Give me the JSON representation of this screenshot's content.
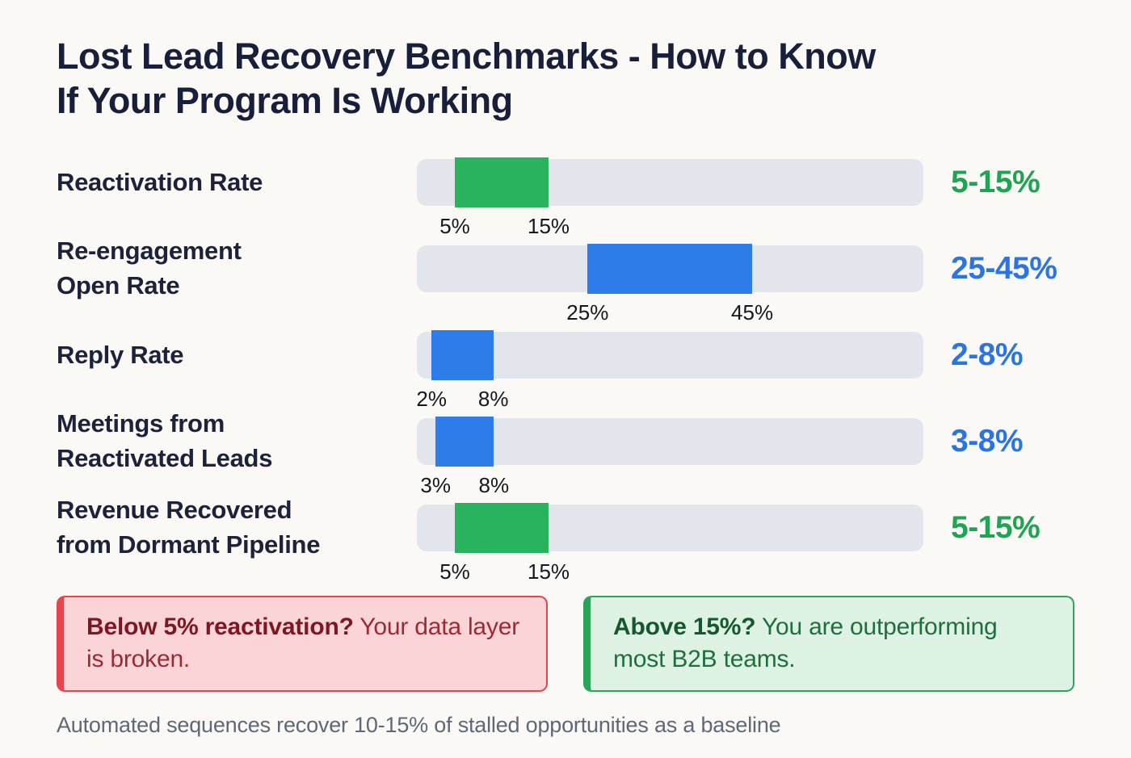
{
  "title": "Lost Lead Recovery Benchmarks - How to Know\nIf Your Program Is Working",
  "chart_data": {
    "type": "bar",
    "subtype": "horizontal-range-bars",
    "title": "Lost Lead Recovery Benchmarks - How to Know If Your Program Is Working",
    "legend_position": "none",
    "grid": false,
    "colors": {
      "green": "#29b35e",
      "blue": "#2e7ce9",
      "green_text": "#1ea452",
      "blue_text": "#2b74e4",
      "track": "#e2e5eb"
    },
    "rows": [
      {
        "label": "Reactivation Rate",
        "min": 5,
        "max": 15,
        "unit": "%",
        "min_label": "5%",
        "max_label": "15%",
        "range_label": "5-15%",
        "color": "green",
        "start_pct": 7.5,
        "end_pct": 26.0
      },
      {
        "label": "Re-engagement\nOpen Rate",
        "min": 25,
        "max": 45,
        "unit": "%",
        "min_label": "25%",
        "max_label": "45%",
        "range_label": "25-45%",
        "color": "blue",
        "start_pct": 33.7,
        "end_pct": 66.2
      },
      {
        "label": "Reply Rate",
        "min": 2,
        "max": 8,
        "unit": "%",
        "min_label": "2%",
        "max_label": "8%",
        "range_label": "2-8%",
        "color": "blue",
        "start_pct": 2.9,
        "end_pct": 15.1
      },
      {
        "label": "Meetings from\nReactivated Leads",
        "min": 3,
        "max": 8,
        "unit": "%",
        "min_label": "3%",
        "max_label": "8%",
        "range_label": "3-8%",
        "color": "blue",
        "start_pct": 3.7,
        "end_pct": 15.2
      },
      {
        "label": "Revenue Recovered\nfrom Dormant Pipeline",
        "min": 5,
        "max": 15,
        "unit": "%",
        "min_label": "5%",
        "max_label": "15%",
        "range_label": "5-15%",
        "color": "green",
        "start_pct": 7.5,
        "end_pct": 26.0
      }
    ]
  },
  "callouts": {
    "negative": {
      "bold": "Below 5% reactivation?",
      "text": "Your data layer is broken."
    },
    "positive": {
      "bold": "Above 15%?",
      "text": "You are outperforming most B2B teams."
    }
  },
  "footnote": "Automated sequences recover 10-15% of stalled opportunities as a baseline"
}
